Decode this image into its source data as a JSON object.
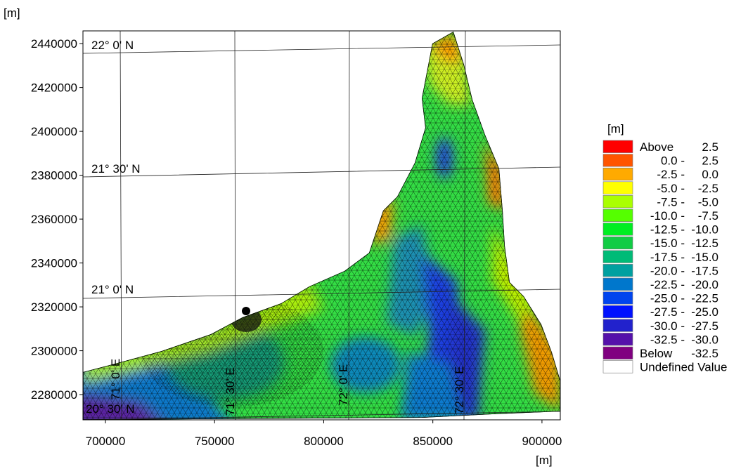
{
  "chart_data": {
    "type": "mesh-map",
    "y_unit_label": "[m]",
    "x_unit_label": "[m]",
    "xlim": [
      689700,
      908400
    ],
    "ylim": [
      2268500,
      2445800
    ],
    "xticks": [
      700000,
      750000,
      800000,
      850000,
      900000
    ],
    "yticks": [
      2280000,
      2300000,
      2320000,
      2340000,
      2360000,
      2380000,
      2400000,
      2420000,
      2440000
    ],
    "graticule_labels": [
      "22° 0' N",
      "21° 30' N",
      "21° 0' N",
      "20° 30' N",
      "71° 0' E",
      "71° 30' E",
      "72° 0' E",
      "72° 30' E"
    ],
    "legend": {
      "title": "[m]",
      "entries": [
        {
          "from": "Above",
          "to": "2.5",
          "color": "#ff0000"
        },
        {
          "from": "0.0 -",
          "to": "2.5",
          "color": "#ff5500"
        },
        {
          "from": "-2.5 -",
          "to": "0.0",
          "color": "#ffaa00"
        },
        {
          "from": "-5.0 -",
          "to": "-2.5",
          "color": "#ffff00"
        },
        {
          "from": "-7.5 -",
          "to": "-5.0",
          "color": "#aaff00"
        },
        {
          "from": "-10.0 -",
          "to": "-7.5",
          "color": "#55ff00"
        },
        {
          "from": "-12.5 -",
          "to": "-10.0",
          "color": "#00ee22"
        },
        {
          "from": "-15.0 -",
          "to": "-12.5",
          "color": "#11cc44"
        },
        {
          "from": "-17.5 -",
          "to": "-15.0",
          "color": "#00bb77"
        },
        {
          "from": "-20.0 -",
          "to": "-17.5",
          "color": "#00a0a0"
        },
        {
          "from": "-22.5 -",
          "to": "-20.0",
          "color": "#0077cc"
        },
        {
          "from": "-25.0 -",
          "to": "-22.5",
          "color": "#0044ee"
        },
        {
          "from": "-27.5 -",
          "to": "-25.0",
          "color": "#0011ff"
        },
        {
          "from": "-30.0 -",
          "to": "-27.5",
          "color": "#2222cc"
        },
        {
          "from": "-32.5 -",
          "to": "-30.0",
          "color": "#5511aa"
        },
        {
          "from": "Below",
          "to": "-32.5",
          "color": "#800080"
        },
        {
          "from": "Undefined Value",
          "color": "#ffffff"
        }
      ]
    }
  }
}
